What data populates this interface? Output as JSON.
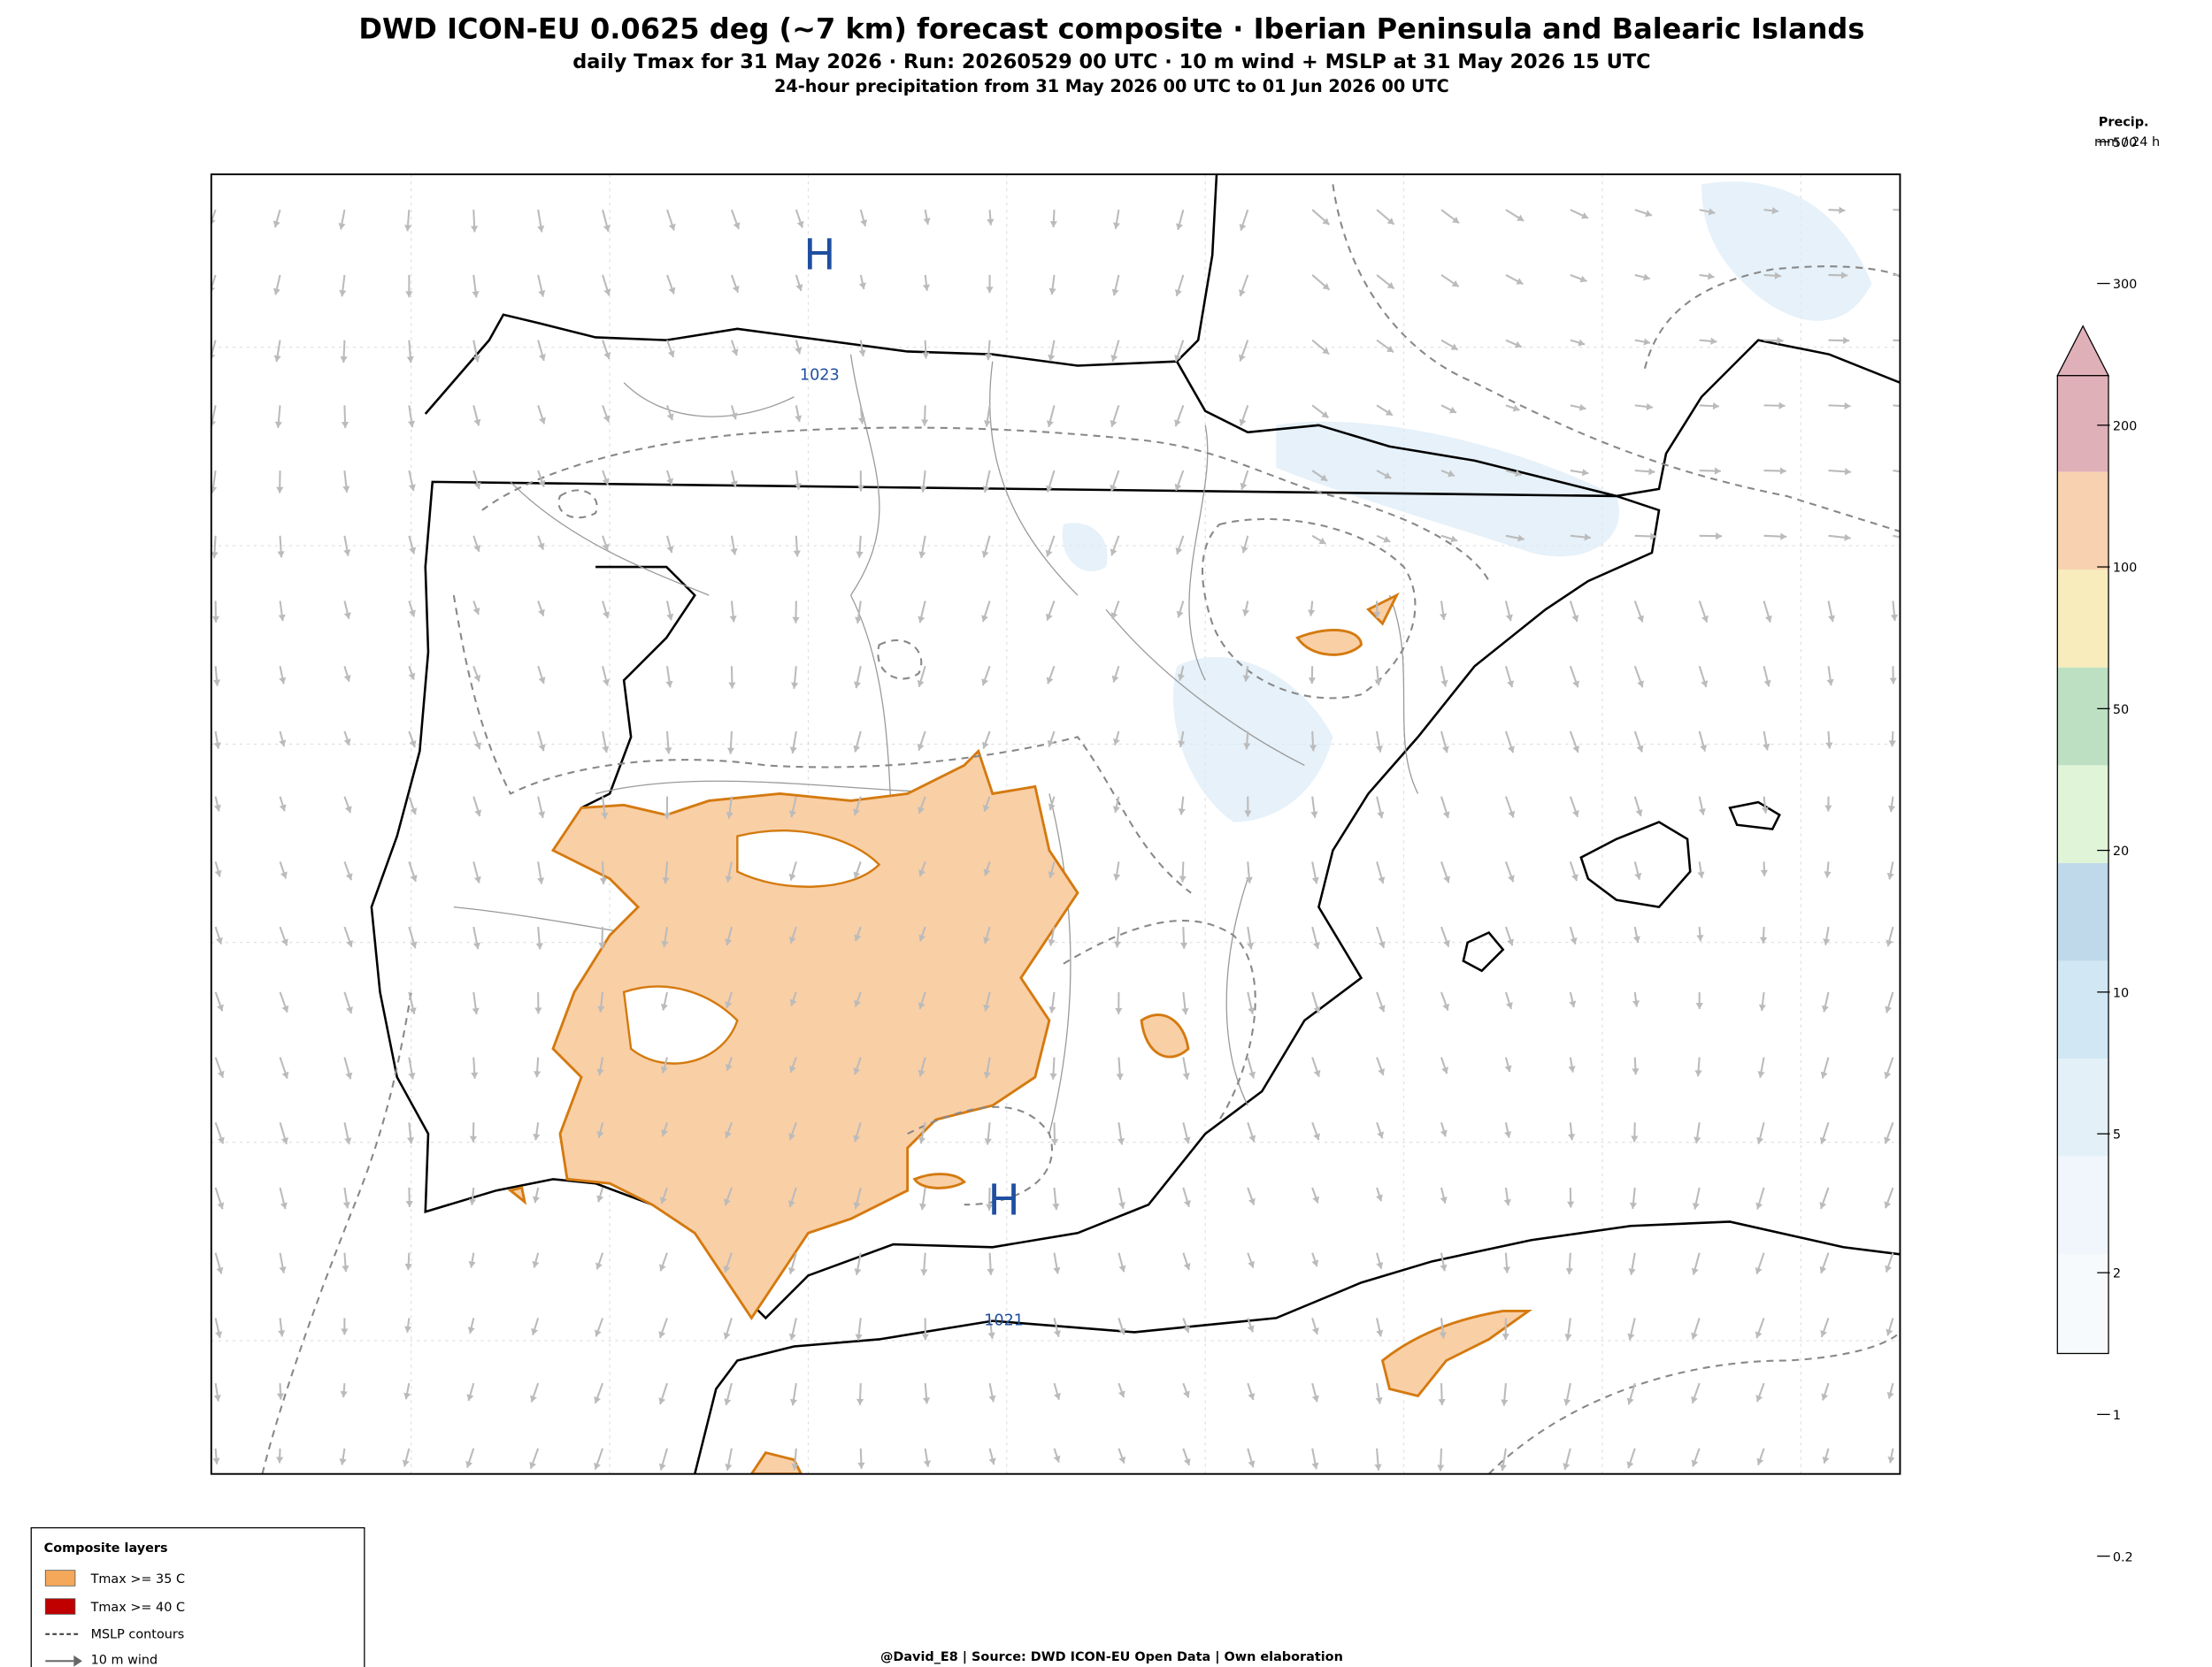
{
  "header": {
    "title": "DWD ICON-EU 0.0625 deg (~7 km) forecast composite · Iberian Peninsula and Balearic Islands",
    "subtitle": "daily Tmax for 31 May 2026 · Run: 20260529 00 UTC · 10 m wind + MSLP at 31 May 2026 15 UTC",
    "subtitle2": "24-hour precipitation from 31 May 2026 00 UTC to 01 Jun 2026 00 UTC"
  },
  "map": {
    "pressure_centers": [
      "H",
      "H"
    ],
    "isobar_labels": [
      1023,
      1021
    ]
  },
  "colorbar": {
    "title": "Precip.",
    "unit": "mm / 24 h",
    "ticks": [
      500,
      300,
      200,
      100,
      50,
      20,
      10,
      5,
      2,
      1,
      0.2
    ]
  },
  "legend": {
    "title": "Composite layers",
    "items": [
      "Tmax >= 35 C",
      "Tmax >= 40 C",
      "MSLP contours",
      "10 m wind"
    ]
  },
  "footer": "@David_E8 | Source: DWD ICON-EU Open Data | Own elaboration"
}
